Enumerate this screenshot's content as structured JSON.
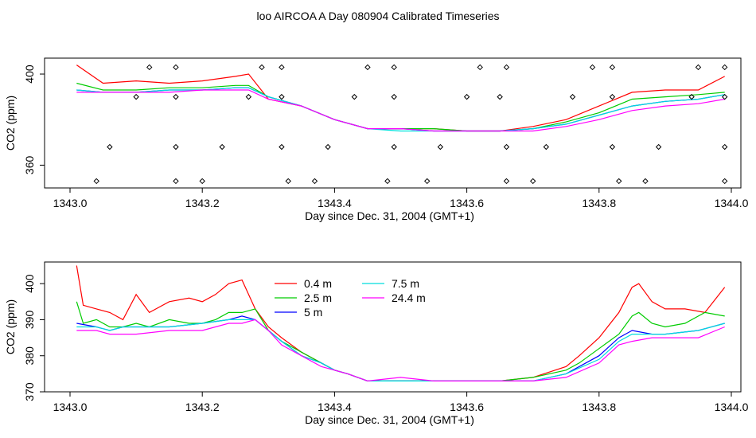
{
  "chart_data": [
    {
      "type": "line",
      "title": "loo AIRCOA A  Day 080904  Calibrated Timeseries",
      "xlabel": "Day since Dec. 31, 2004 (GMT+1)",
      "ylabel": "CO2 (ppm)",
      "xlim": [
        1343.0,
        1344.0
      ],
      "ylim": [
        350,
        407
      ],
      "x_ticks": [
        "1343.0",
        "1343.2",
        "1343.4",
        "1343.6",
        "1343.8",
        "1344.0"
      ],
      "y_ticks": [
        "360",
        "400"
      ],
      "grid": false,
      "colors": {
        "0.4 m": "#ff0000",
        "2.5 m": "#00cc00",
        "5 m": "#0000ff",
        "7.5 m": "#00dddd",
        "24.4 m": "#ff00ff",
        "markers": "#000000"
      },
      "series": [
        {
          "name": "0.4 m",
          "x": [
            1343.01,
            1343.05,
            1343.1,
            1343.15,
            1343.2,
            1343.25,
            1343.27,
            1343.3,
            1343.35,
            1343.4,
            1343.45,
            1343.5,
            1343.55,
            1343.6,
            1343.65,
            1343.7,
            1343.75,
            1343.8,
            1343.85,
            1343.9,
            1343.95,
            1343.99
          ],
          "y": [
            404,
            396,
            397,
            396,
            397,
            399,
            400,
            389,
            386,
            380,
            376,
            376,
            376,
            375,
            375,
            377,
            380,
            386,
            392,
            393,
            393,
            399
          ]
        },
        {
          "name": "2.5 m",
          "x": [
            1343.01,
            1343.05,
            1343.1,
            1343.15,
            1343.2,
            1343.25,
            1343.27,
            1343.3,
            1343.35,
            1343.4,
            1343.45,
            1343.5,
            1343.55,
            1343.6,
            1343.65,
            1343.7,
            1343.75,
            1343.8,
            1343.85,
            1343.9,
            1343.95,
            1343.99
          ],
          "y": [
            396,
            393,
            393,
            394,
            394,
            395,
            395,
            390,
            386,
            380,
            376,
            376,
            376,
            375,
            375,
            376,
            379,
            383,
            389,
            390,
            391,
            392
          ]
        },
        {
          "name": "5 m",
          "x": [
            1343.01,
            1343.05,
            1343.1,
            1343.15,
            1343.2,
            1343.25,
            1343.27,
            1343.3,
            1343.35,
            1343.4,
            1343.45,
            1343.5,
            1343.55,
            1343.6,
            1343.65,
            1343.7,
            1343.75,
            1343.8,
            1343.85,
            1343.9,
            1343.95,
            1343.99
          ],
          "y": [
            393,
            392,
            392,
            393,
            393,
            394,
            394,
            390,
            386,
            380,
            376,
            376,
            375,
            375,
            375,
            376,
            378,
            382,
            386,
            388,
            389,
            391
          ]
        },
        {
          "name": "7.5 m",
          "x": [
            1343.01,
            1343.05,
            1343.1,
            1343.15,
            1343.2,
            1343.25,
            1343.27,
            1343.3,
            1343.35,
            1343.4,
            1343.45,
            1343.5,
            1343.55,
            1343.6,
            1343.65,
            1343.7,
            1343.75,
            1343.8,
            1343.85,
            1343.9,
            1343.95,
            1343.99
          ],
          "y": [
            393,
            392,
            392,
            393,
            393,
            394,
            394,
            390,
            386,
            380,
            376,
            375,
            375,
            375,
            375,
            376,
            378,
            382,
            386,
            388,
            389,
            391
          ]
        },
        {
          "name": "24.4 m",
          "x": [
            1343.01,
            1343.05,
            1343.1,
            1343.15,
            1343.2,
            1343.25,
            1343.27,
            1343.3,
            1343.35,
            1343.4,
            1343.45,
            1343.5,
            1343.55,
            1343.6,
            1343.65,
            1343.7,
            1343.75,
            1343.8,
            1343.85,
            1343.9,
            1343.95,
            1343.99
          ],
          "y": [
            392,
            392,
            392,
            392,
            393,
            393,
            393,
            389,
            386,
            380,
            376,
            376,
            375,
            375,
            375,
            375,
            377,
            380,
            384,
            386,
            387,
            389
          ]
        }
      ],
      "marker_points": {
        "x": [
          1343.04,
          1343.06,
          1343.1,
          1343.12,
          1343.16,
          1343.16,
          1343.16,
          1343.16,
          1343.2,
          1343.23,
          1343.27,
          1343.29,
          1343.32,
          1343.32,
          1343.32,
          1343.33,
          1343.37,
          1343.39,
          1343.43,
          1343.45,
          1343.48,
          1343.49,
          1343.49,
          1343.49,
          1343.54,
          1343.56,
          1343.6,
          1343.62,
          1343.65,
          1343.66,
          1343.66,
          1343.66,
          1343.7,
          1343.72,
          1343.76,
          1343.79,
          1343.82,
          1343.82,
          1343.82,
          1343.83,
          1343.87,
          1343.89,
          1343.94,
          1343.95,
          1343.99,
          1343.99,
          1343.99,
          1343.99
        ],
        "y": [
          353,
          368,
          390,
          403,
          390,
          403,
          368,
          353,
          353,
          368,
          390,
          403,
          403,
          390,
          368,
          353,
          353,
          368,
          390,
          403,
          353,
          390,
          403,
          368,
          353,
          368,
          390,
          403,
          390,
          403,
          368,
          353,
          353,
          368,
          390,
          403,
          403,
          390,
          368,
          353,
          353,
          368,
          390,
          403,
          403,
          390,
          368,
          353
        ]
      }
    },
    {
      "type": "line",
      "xlabel": "Day since Dec. 31, 2004 (GMT+1)",
      "ylabel": "CO2 (ppm)",
      "xlim": [
        1343.0,
        1344.0
      ],
      "ylim": [
        370,
        406
      ],
      "x_ticks": [
        "1343.0",
        "1343.2",
        "1343.4",
        "1343.6",
        "1343.8",
        "1344.0"
      ],
      "y_ticks": [
        "370",
        "380",
        "390",
        "400"
      ],
      "grid": false,
      "legend": {
        "placement": "top-left",
        "entries": [
          "0.4 m",
          "2.5 m",
          "5 m",
          "7.5 m",
          "24.4 m"
        ]
      },
      "colors": {
        "0.4 m": "#ff0000",
        "2.5 m": "#00cc00",
        "5 m": "#0000ff",
        "7.5 m": "#00dddd",
        "24.4 m": "#ff00ff"
      },
      "series": [
        {
          "name": "0.4 m",
          "x": [
            1343.01,
            1343.02,
            1343.04,
            1343.06,
            1343.08,
            1343.1,
            1343.12,
            1343.15,
            1343.18,
            1343.2,
            1343.22,
            1343.24,
            1343.26,
            1343.28,
            1343.3,
            1343.32,
            1343.35,
            1343.38,
            1343.4,
            1343.42,
            1343.45,
            1343.5,
            1343.55,
            1343.6,
            1343.65,
            1343.7,
            1343.75,
            1343.77,
            1343.8,
            1343.83,
            1343.85,
            1343.86,
            1343.88,
            1343.9,
            1343.93,
            1343.96,
            1343.99
          ],
          "y": [
            405,
            394,
            393,
            392,
            390,
            397,
            392,
            395,
            396,
            395,
            397,
            400,
            401,
            393,
            388,
            385,
            381,
            378,
            376,
            375,
            373,
            373,
            373,
            373,
            373,
            374,
            377,
            380,
            385,
            392,
            399,
            400,
            395,
            393,
            393,
            392,
            399
          ]
        },
        {
          "name": "2.5 m",
          "x": [
            1343.01,
            1343.02,
            1343.04,
            1343.06,
            1343.08,
            1343.1,
            1343.12,
            1343.15,
            1343.18,
            1343.2,
            1343.22,
            1343.24,
            1343.26,
            1343.28,
            1343.3,
            1343.32,
            1343.35,
            1343.38,
            1343.4,
            1343.42,
            1343.45,
            1343.5,
            1343.55,
            1343.6,
            1343.65,
            1343.7,
            1343.75,
            1343.77,
            1343.8,
            1343.83,
            1343.85,
            1343.86,
            1343.88,
            1343.9,
            1343.93,
            1343.96,
            1343.99
          ],
          "y": [
            395,
            389,
            390,
            388,
            388,
            389,
            388,
            390,
            389,
            389,
            390,
            392,
            392,
            393,
            387,
            384,
            381,
            378,
            376,
            375,
            373,
            373,
            373,
            373,
            373,
            374,
            376,
            378,
            382,
            386,
            391,
            392,
            389,
            388,
            389,
            392,
            391
          ]
        },
        {
          "name": "5 m",
          "x": [
            1343.01,
            1343.04,
            1343.06,
            1343.08,
            1343.1,
            1343.15,
            1343.2,
            1343.24,
            1343.26,
            1343.28,
            1343.3,
            1343.32,
            1343.35,
            1343.38,
            1343.4,
            1343.42,
            1343.45,
            1343.5,
            1343.55,
            1343.6,
            1343.65,
            1343.7,
            1343.75,
            1343.8,
            1343.83,
            1343.85,
            1343.88,
            1343.9,
            1343.95,
            1343.99
          ],
          "y": [
            389,
            388,
            387,
            388,
            388,
            388,
            389,
            390,
            391,
            390,
            387,
            384,
            380,
            378,
            376,
            375,
            373,
            373,
            373,
            373,
            373,
            373,
            375,
            380,
            385,
            387,
            386,
            386,
            387,
            389
          ]
        },
        {
          "name": "7.5 m",
          "x": [
            1343.01,
            1343.04,
            1343.06,
            1343.08,
            1343.1,
            1343.15,
            1343.2,
            1343.24,
            1343.26,
            1343.28,
            1343.3,
            1343.32,
            1343.35,
            1343.38,
            1343.4,
            1343.42,
            1343.45,
            1343.5,
            1343.55,
            1343.6,
            1343.65,
            1343.7,
            1343.75,
            1343.8,
            1343.83,
            1343.85,
            1343.88,
            1343.9,
            1343.95,
            1343.99
          ],
          "y": [
            388,
            388,
            387,
            388,
            388,
            388,
            389,
            390,
            390,
            390,
            387,
            384,
            380,
            378,
            376,
            375,
            373,
            373,
            373,
            373,
            373,
            373,
            375,
            379,
            384,
            386,
            386,
            386,
            387,
            389
          ]
        },
        {
          "name": "24.4 m",
          "x": [
            1343.01,
            1343.04,
            1343.06,
            1343.08,
            1343.1,
            1343.15,
            1343.2,
            1343.24,
            1343.26,
            1343.28,
            1343.3,
            1343.32,
            1343.35,
            1343.38,
            1343.4,
            1343.42,
            1343.45,
            1343.5,
            1343.55,
            1343.6,
            1343.65,
            1343.7,
            1343.75,
            1343.8,
            1343.83,
            1343.85,
            1343.88,
            1343.9,
            1343.95,
            1343.99
          ],
          "y": [
            387,
            387,
            386,
            386,
            386,
            387,
            387,
            389,
            389,
            390,
            387,
            383,
            380,
            377,
            376,
            375,
            373,
            374,
            373,
            373,
            373,
            373,
            374,
            378,
            383,
            384,
            385,
            385,
            385,
            388
          ]
        }
      ]
    }
  ]
}
